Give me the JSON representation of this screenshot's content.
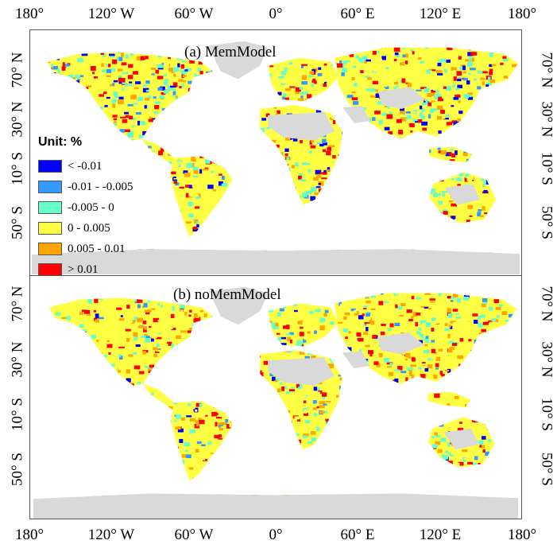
{
  "panels": [
    {
      "title": "(a) MemModel"
    },
    {
      "title": "(b) noMemModel"
    }
  ],
  "lon_labels": [
    "180°",
    "120° W",
    "60° W",
    "0°",
    "60° E",
    "120° E",
    "180°"
  ],
  "lat_labels": [
    "70° N",
    "30° N",
    "10° S",
    "50° S"
  ],
  "legend": {
    "title": "Unit: %",
    "items": [
      {
        "label": "< -0.01",
        "color": "#0000ff"
      },
      {
        "label": "-0.01 - -0.005",
        "color": "#3399ff"
      },
      {
        "label": "-0.005 - 0",
        "color": "#66ffcc"
      },
      {
        "label": "0 - 0.005",
        "color": "#ffff44"
      },
      {
        "label": "0.005 - 0.01",
        "color": "#ffa500"
      },
      {
        "label": "> 0.01",
        "color": "#ff0000"
      }
    ]
  },
  "colors": {
    "land_nodata": "#d9d9d9",
    "frame": "#555555"
  }
}
